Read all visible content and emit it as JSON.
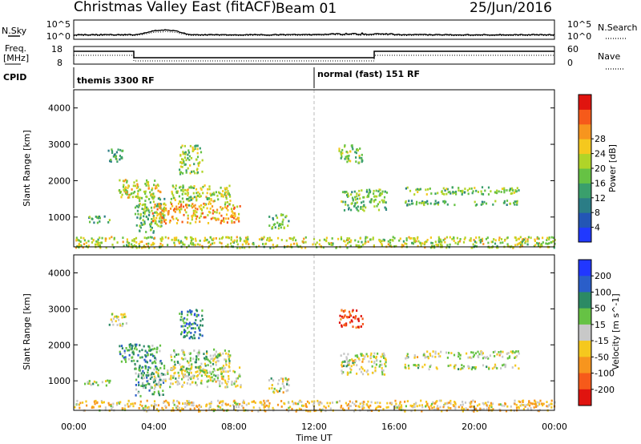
{
  "header": {
    "station": "Christmas Valley East (fitACF)",
    "beam": "Beam 01",
    "date": "25/Jun/2016"
  },
  "top_panels": {
    "nsky_label": "N.Sky",
    "nsearch_label": "N.Search",
    "noise_ticks_left": [
      "10^5",
      "10^0"
    ],
    "noise_ticks_right": [
      "10^5",
      "10^0"
    ],
    "freq_label_line1": "Freq.",
    "freq_label_line2": "[MHz]",
    "freq_ticks": [
      "18",
      "8"
    ],
    "nave_label": "Nave",
    "nave_ticks": [
      "60",
      "0"
    ],
    "cpid_label": "CPID",
    "cpid_segments": [
      {
        "label": "themis 3300 RF",
        "start_hour": 0
      },
      {
        "label": "normal (fast) 151 RF",
        "start_hour": 12
      }
    ]
  },
  "x_axis": {
    "label": "Time UT",
    "ticks": [
      "00:00",
      "04:00",
      "08:00",
      "12:00",
      "16:00",
      "20:00",
      "00:00"
    ],
    "range_hours": [
      0,
      24
    ]
  },
  "chart_data": [
    {
      "type": "heatmap",
      "name": "power",
      "ylabel": "Slant Range [km]",
      "ylim": [
        180,
        4500
      ],
      "yticks": [
        1000,
        2000,
        3000,
        4000
      ],
      "colorbar": {
        "label": "Power [dB]",
        "ticks": [
          "4",
          "8",
          "12",
          "16",
          "20",
          "24",
          "28"
        ],
        "colors": [
          "#2039ff",
          "#2356b5",
          "#2b7d86",
          "#3a9f6c",
          "#66c244",
          "#b0d428",
          "#f5c81e",
          "#f7951e",
          "#f65a1a",
          "#e0140f"
        ]
      },
      "echo_regions": [
        {
          "t": [
            0.5,
            1.8
          ],
          "r": [
            870,
            1050
          ],
          "level": 0.4
        },
        {
          "t": [
            1.7,
            2.6
          ],
          "r": [
            2550,
            2900
          ],
          "level": 0.35
        },
        {
          "t": [
            2.2,
            4.3
          ],
          "r": [
            1550,
            2050
          ],
          "level": 0.6
        },
        {
          "t": [
            3.0,
            4.5
          ],
          "r": [
            600,
            1600
          ],
          "level": 0.45
        },
        {
          "t": [
            3.9,
            8.3
          ],
          "r": [
            850,
            1400
          ],
          "level": 0.7
        },
        {
          "t": [
            4.8,
            7.8
          ],
          "r": [
            1350,
            1900
          ],
          "level": 0.55
        },
        {
          "t": [
            5.2,
            6.4
          ],
          "r": [
            2200,
            3000
          ],
          "level": 0.5
        },
        {
          "t": [
            9.7,
            10.7
          ],
          "r": [
            700,
            1100
          ],
          "level": 0.45
        },
        {
          "t": [
            13.2,
            14.4
          ],
          "r": [
            2500,
            3000
          ],
          "level": 0.5
        },
        {
          "t": [
            13.3,
            15.6
          ],
          "r": [
            1200,
            1800
          ],
          "level": 0.45
        },
        {
          "t": [
            16.5,
            22.2
          ],
          "r": [
            1650,
            1850
          ],
          "level": 0.45
        },
        {
          "t": [
            16.5,
            22.2
          ],
          "r": [
            1350,
            1480
          ],
          "level": 0.4
        },
        {
          "t": [
            0,
            24
          ],
          "r": [
            180,
            480
          ],
          "level": 0.55
        }
      ]
    },
    {
      "type": "heatmap",
      "name": "velocity",
      "ylabel": "Slant Range [km]",
      "ylim": [
        180,
        4500
      ],
      "yticks": [
        1000,
        2000,
        3000,
        4000
      ],
      "colorbar": {
        "label": "Velocity [m s^-1]",
        "ticks": [
          "200",
          "100",
          "50",
          "15",
          "-15",
          "-50",
          "-100",
          "-200"
        ],
        "colors": [
          "#2137ff",
          "#2a5ec9",
          "#2c8a64",
          "#66c244",
          "#c8c8c8",
          "#f5c81e",
          "#f7951e",
          "#f65a1a",
          "#e0140f"
        ]
      },
      "echo_regions": [
        {
          "t": [
            0.5,
            1.8
          ],
          "r": [
            870,
            1050
          ],
          "level": 0.5
        },
        {
          "t": [
            1.7,
            2.6
          ],
          "r": [
            2550,
            2900
          ],
          "level": 0.5
        },
        {
          "t": [
            2.2,
            4.3
          ],
          "r": [
            1550,
            2050
          ],
          "level": 0.35
        },
        {
          "t": [
            3.0,
            4.5
          ],
          "r": [
            600,
            1600
          ],
          "level": 0.35
        },
        {
          "t": [
            3.9,
            8.3
          ],
          "r": [
            850,
            1400
          ],
          "level": 0.5
        },
        {
          "t": [
            4.8,
            7.8
          ],
          "r": [
            1350,
            1900
          ],
          "level": 0.45
        },
        {
          "t": [
            5.2,
            6.4
          ],
          "r": [
            2200,
            3000
          ],
          "level": 0.25
        },
        {
          "t": [
            9.7,
            10.7
          ],
          "r": [
            700,
            1100
          ],
          "level": 0.5
        },
        {
          "t": [
            13.2,
            14.4
          ],
          "r": [
            2500,
            3000
          ],
          "level": 0.9
        },
        {
          "t": [
            13.3,
            15.6
          ],
          "r": [
            1200,
            1800
          ],
          "level": 0.5
        },
        {
          "t": [
            16.5,
            22.2
          ],
          "r": [
            1650,
            1850
          ],
          "level": 0.5
        },
        {
          "t": [
            16.5,
            22.2
          ],
          "r": [
            1350,
            1480
          ],
          "level": 0.5
        },
        {
          "t": [
            0,
            24
          ],
          "r": [
            180,
            480
          ],
          "level": 0.6
        }
      ]
    }
  ]
}
